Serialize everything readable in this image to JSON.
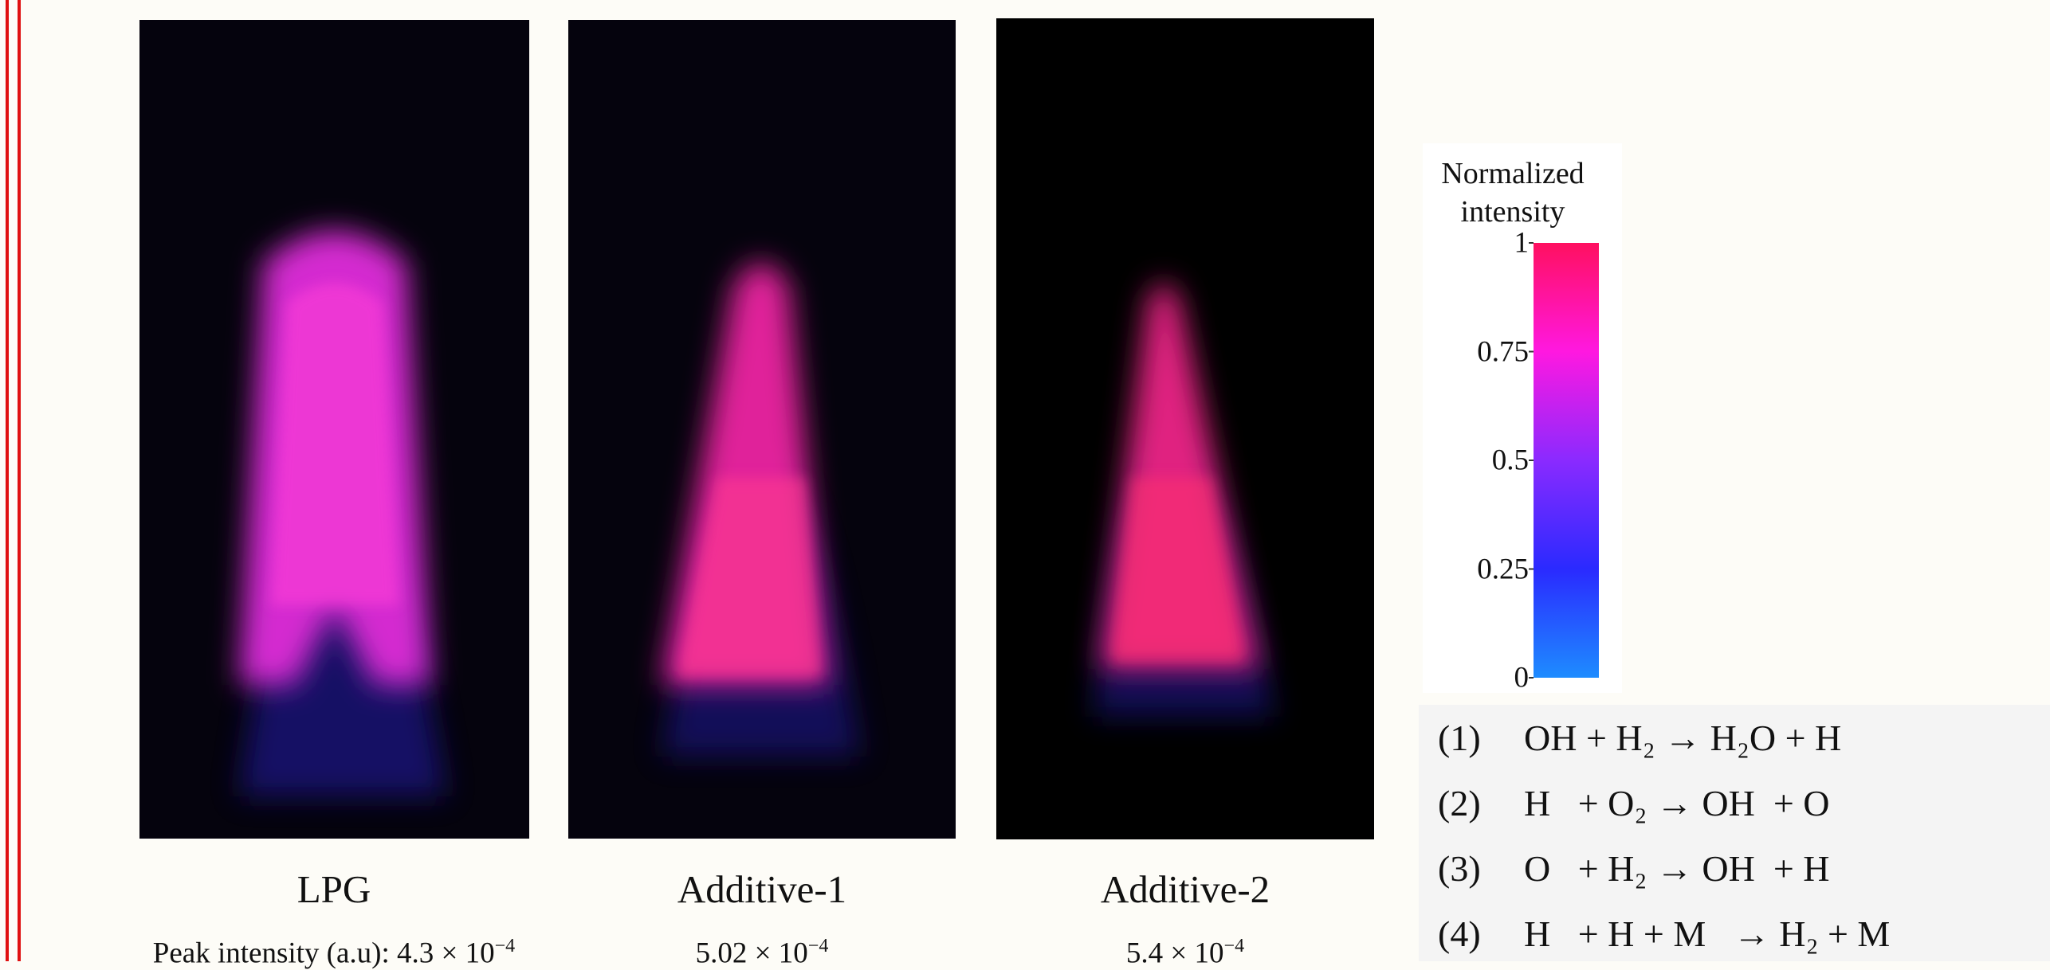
{
  "panels": [
    {
      "label": "LPG",
      "peak_prefix": "Peak intensity (a.u): ",
      "peak_value": "4.3 × 10",
      "peak_exp": "−4"
    },
    {
      "label": "Additive-1",
      "peak_value": "5.02 × 10",
      "peak_exp": "−4"
    },
    {
      "label": "Additive-2",
      "peak_value": "5.4 × 10",
      "peak_exp": "−4"
    }
  ],
  "colorbar": {
    "title": [
      "Normalized",
      "intensity"
    ],
    "ticks": [
      0,
      0.25,
      0.5,
      0.75,
      1
    ]
  },
  "reactions": [
    {
      "number": "(1)",
      "equation": "OH + H₂ → H₂O + H"
    },
    {
      "number": "(2)",
      "equation": "H   + O₂ → OH  + O"
    },
    {
      "number": "(3)",
      "equation": "O   + H₂ → OH  + H"
    },
    {
      "number": "(4)",
      "equation": "H   + H + M   → H₂ + M"
    }
  ]
}
